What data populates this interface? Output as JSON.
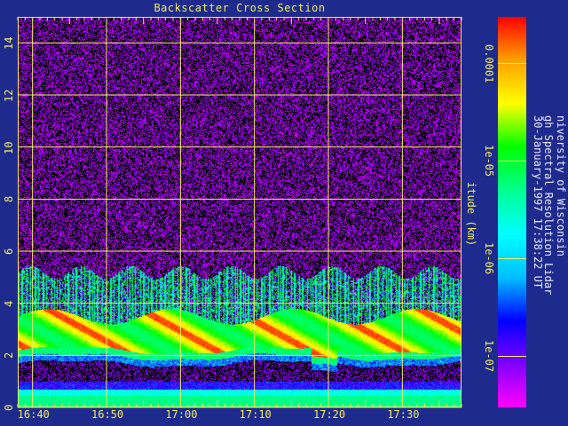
{
  "chart_data": {
    "type": "heatmap",
    "title": "Backscatter Cross Section",
    "ylabel": "itude (km)",
    "xlabel": "",
    "x_ticks": [
      "16:40",
      "16:50",
      "17:00",
      "17:10",
      "17:20",
      "17:30"
    ],
    "x_tick_minutes": [
      640,
      650,
      660,
      670,
      680,
      690
    ],
    "xlim_minutes": [
      638,
      698
    ],
    "y_ticks": [
      "0",
      "2",
      "4",
      "6",
      "8",
      "10",
      "12",
      "14"
    ],
    "y_tick_values": [
      0,
      2,
      4,
      6,
      8,
      10,
      12,
      14
    ],
    "ylim": [
      0,
      15
    ],
    "grid": true,
    "colorbar": {
      "labels": [
        "0.0001",
        "1e-05",
        "1e-06",
        "1e-07"
      ],
      "values": [
        0.0001,
        1e-05,
        1e-06,
        1e-07
      ],
      "scale": "log",
      "range": [
        3e-08,
        0.0003
      ],
      "colors": [
        "#ff00ff",
        "#8000ff",
        "#0000ff",
        "#00c0ff",
        "#00ffff",
        "#00ff90",
        "#00ff00",
        "#ffff00",
        "#ffa000",
        "#ff0000"
      ]
    },
    "features": {
      "cloud_base_km": 1.8,
      "dense_layer_top_km": 3.5,
      "sparse_tops_km": 5.2,
      "noise_background": "purple-black speckle above 5 km"
    }
  },
  "credits": {
    "line1": "niversity of Wisconsin",
    "line2": "gh Spectral Resolution Lidar",
    "line3": "30-January-1997 17:38:22 UT"
  },
  "colors": {
    "background": "#1e2a8c",
    "grid": "#f0f060",
    "text": "#f0f060"
  }
}
